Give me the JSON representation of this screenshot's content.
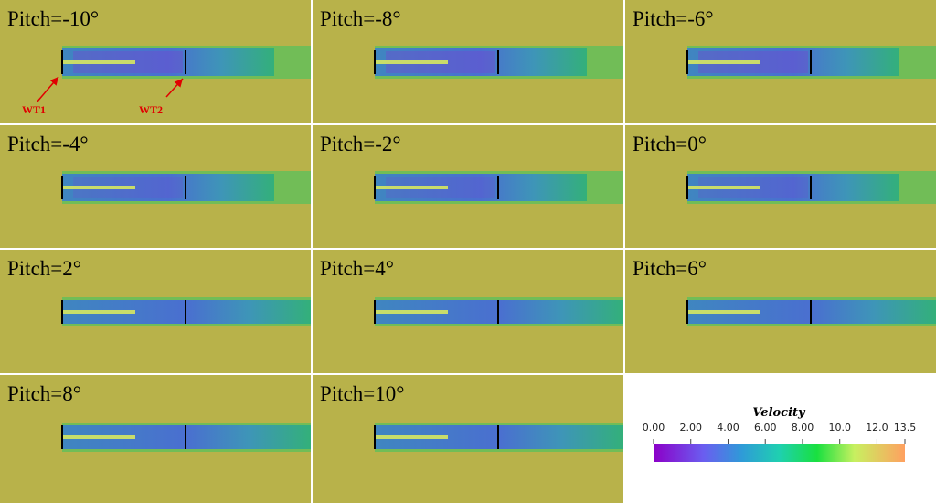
{
  "panels": [
    {
      "label": "Pitch=-10°"
    },
    {
      "label": "Pitch=-8°"
    },
    {
      "label": "Pitch=-6°"
    },
    {
      "label": "Pitch=-4°"
    },
    {
      "label": "Pitch=-2°"
    },
    {
      "label": "Pitch=0°"
    },
    {
      "label": "Pitch=2°"
    },
    {
      "label": "Pitch=4°"
    },
    {
      "label": "Pitch=6°"
    },
    {
      "label": "Pitch=8°"
    },
    {
      "label": "Pitch=10°"
    }
  ],
  "annotations": {
    "turbine1": "WT1",
    "turbine2": "WT2"
  },
  "colorbar": {
    "title": "Velocity",
    "range": [
      0,
      13.5
    ],
    "ticks": [
      {
        "value": 0,
        "label": "0.00"
      },
      {
        "value": 2,
        "label": "2.00"
      },
      {
        "value": 4,
        "label": "4.00"
      },
      {
        "value": 6,
        "label": "6.00"
      },
      {
        "value": 8,
        "label": "8.00"
      },
      {
        "value": 10,
        "label": "10.0"
      },
      {
        "value": 12,
        "label": "12.0"
      },
      13.5
    ]
  }
}
